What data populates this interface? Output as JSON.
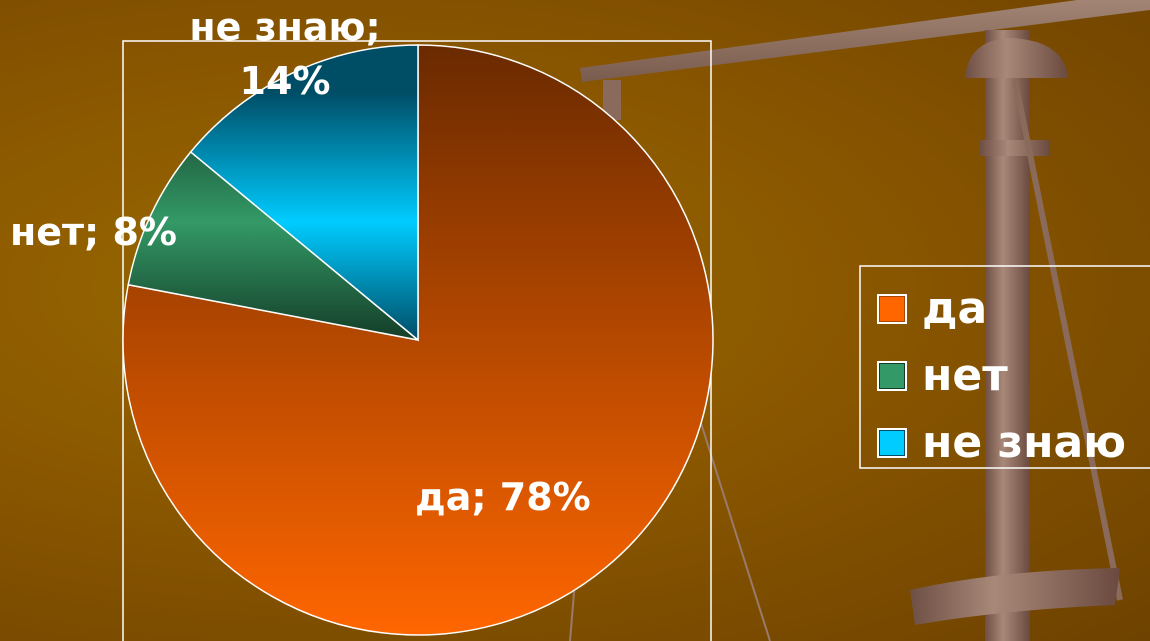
{
  "chart_data": {
    "type": "pie",
    "categories": [
      "да",
      "нет",
      "не знаю"
    ],
    "values": [
      78,
      8,
      14
    ],
    "value_labels": [
      "да; 78%",
      "нет; 8%",
      "не знаю; 14%"
    ],
    "colors": [
      "#ff6600",
      "#339966",
      "#00ccff"
    ],
    "legend": "right"
  }
}
